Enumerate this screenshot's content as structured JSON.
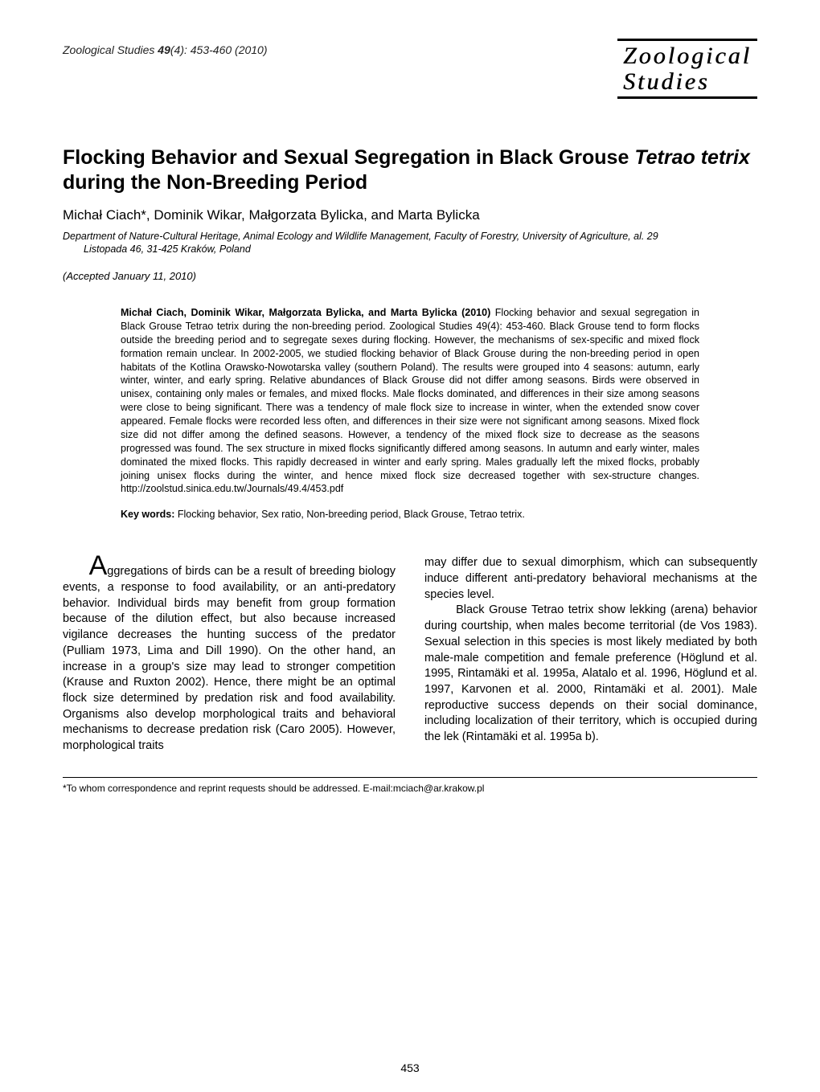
{
  "header": {
    "journal_ref_prefix": "Zoological Studies ",
    "journal_ref_vol": "49",
    "journal_ref_suffix": "(4): 453-460 (2010)",
    "logo_line1": "Zoological",
    "logo_line2": "Studies"
  },
  "title": "Flocking Behavior and Sexual Segregation in Black Grouse Tetrao tetrix during the Non-Breeding Period",
  "title_part1": "Flocking Behavior and Sexual Segregation in Black Grouse ",
  "title_species": "Tetrao tetrix",
  "title_part2": " during the Non-Breeding Period",
  "authors": "Michał Ciach*, Dominik Wikar, Małgorzata Bylicka, and Marta Bylicka",
  "affiliation_line1": "Department of Nature-Cultural Heritage, Animal Ecology and Wildlife Management, Faculty of Forestry, University of Agriculture, al. 29",
  "affiliation_line2": "Listopada 46, 31-425 Kraków, Poland",
  "accepted": "(Accepted January 11, 2010)",
  "abstract_lead": "Michał Ciach, Dominik Wikar, Małgorzata Bylicka, and Marta Bylicka (2010)",
  "abstract_body": " Flocking behavior and sexual segregation in Black Grouse Tetrao tetrix during the non-breeding period.  Zoological Studies 49(4): 453-460.  Black Grouse tend to form flocks outside the breeding period and to segregate sexes during flocking.  However, the mechanisms of sex-specific and mixed flock formation remain unclear.  In 2002-2005, we studied flocking behavior of Black Grouse during the non-breeding period in open habitats of the Kotlina Orawsko-Nowotarska valley (southern Poland).  The results were grouped into 4 seasons: autumn, early winter, winter, and early spring.  Relative abundances of Black Grouse did not differ among seasons.  Birds were observed in unisex, containing only males or females, and mixed flocks.  Male flocks dominated, and differences in their size among seasons were close to being significant.  There was a tendency of male flock size to increase in winter, when the extended snow cover appeared.  Female flocks were recorded less often, and differences in their size were not significant among seasons.  Mixed flock size did not differ among the defined seasons.  However, a tendency of the mixed flock size to decrease as the seasons progressed was found.  The sex structure in mixed flocks significantly differed among seasons.  In autumn and early winter, males dominated the mixed flocks.  This rapidly decreased in winter and early spring.  Males gradually left the mixed flocks, probably joining unisex flocks during the winter, and hence mixed flock size decreased together with sex-structure changes.  http://zoolstud.sinica.edu.tw/Journals/49.4/453.pdf",
  "keywords_lead": "Key words:",
  "keywords_body": " Flocking behavior, Sex ratio, Non-breeding period, Black Grouse, Tetrao tetrix.",
  "col1_dropcap": "A",
  "col1_text": "ggregations of birds can be a result of breeding biology events, a response to food availability, or an anti-predatory behavior.  Individual birds may benefit from group formation because of the dilution effect, but also because increased vigilance decreases the hunting success of the predator (Pulliam 1973, Lima and Dill 1990).  On the other hand, an increase in a group's size may lead to stronger competition (Krause and Ruxton 2002).  Hence, there might be an optimal flock size determined by predation risk and food availability.  Organisms also develop morphological traits and behavioral mechanisms to decrease predation risk (Caro 2005).  However, morphological traits",
  "col2_text": "may differ due to sexual dimorphism, which can subsequently induce different anti-predatory behavioral mechanisms at the species level.",
  "col2_para2": "Black Grouse Tetrao tetrix show lekking (arena) behavior during courtship, when males become territorial (de Vos 1983).  Sexual selection in this species is most likely mediated by both male-male competition and female preference (Höglund et al. 1995, Rintamäki et al. 1995a, Alatalo et al. 1996, Höglund et al. 1997, Karvonen et al. 2000, Rintamäki et al. 2001).  Male reproductive success depends on their social dominance, including localization of their territory, which is occupied during the lek (Rintamäki et al. 1995a b).",
  "footnote": "*To whom correspondence and reprint requests should be addressed.  E-mail:mciach@ar.krakow.pl",
  "page_number": "453"
}
